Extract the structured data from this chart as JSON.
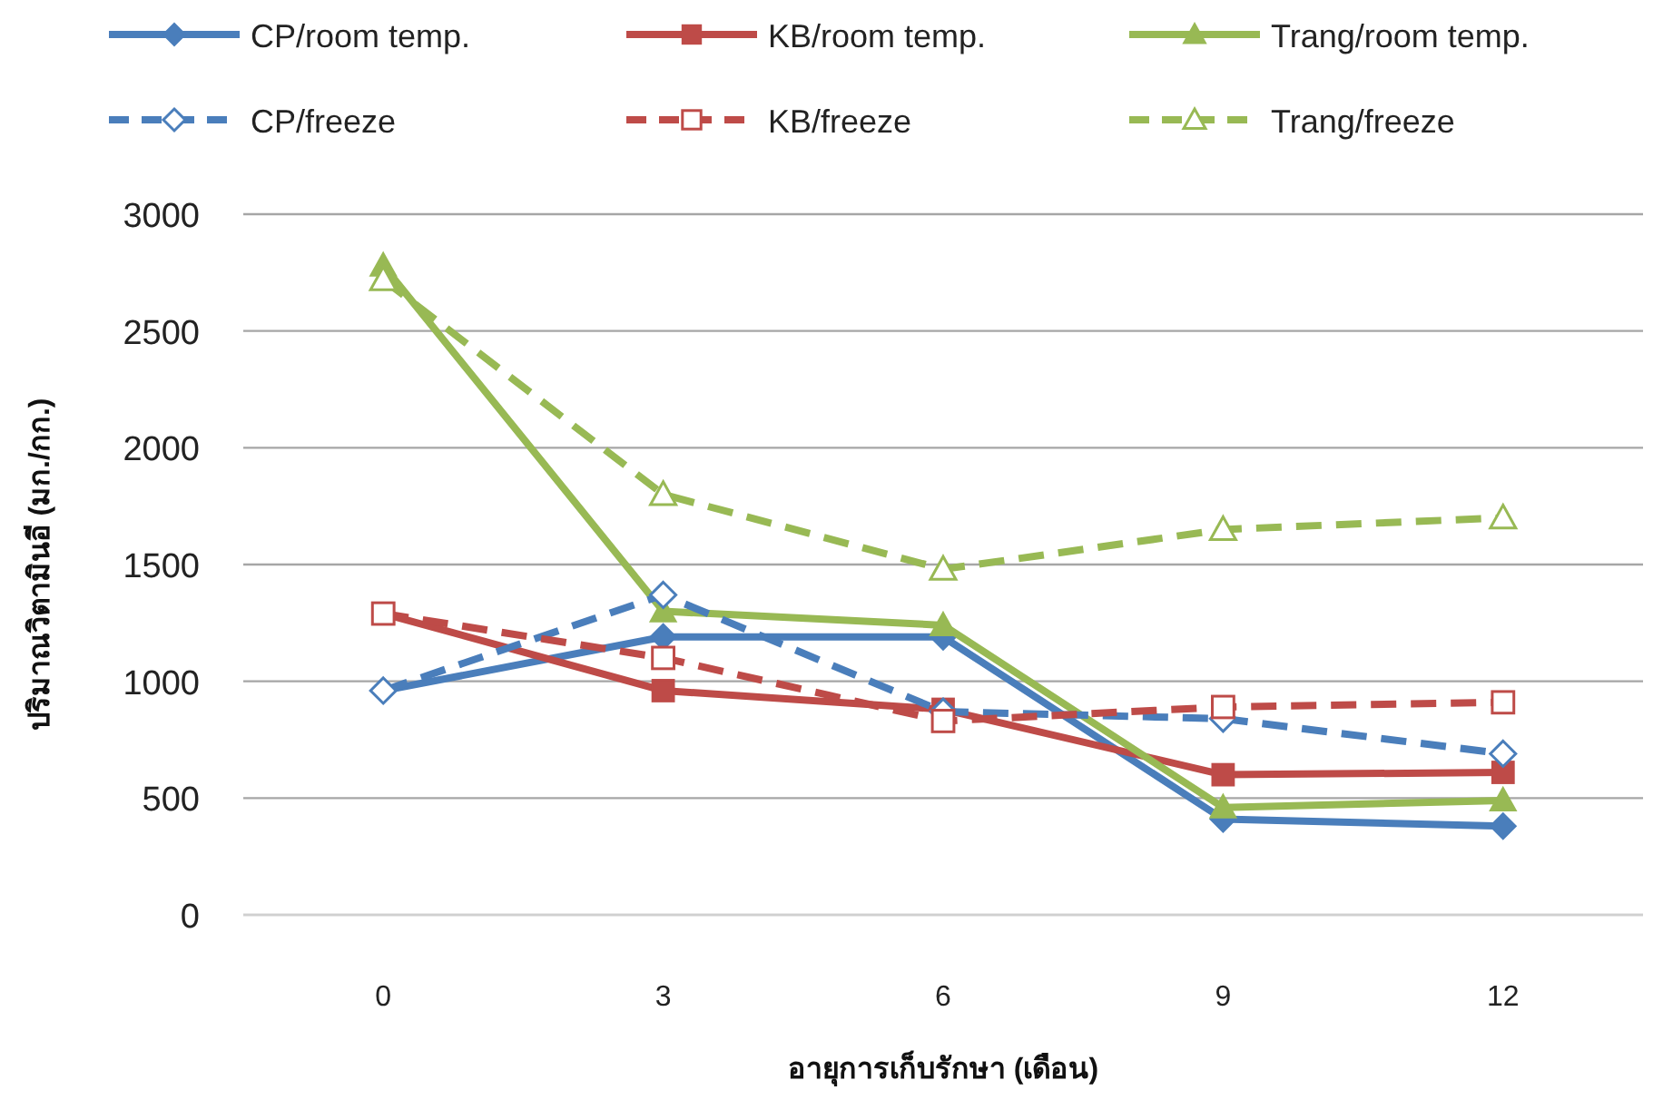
{
  "chart_data": {
    "type": "line",
    "xlabel": "อายุการเก็บรักษา (เดือน)",
    "ylabel": "ปริมาณวิตามินอี (มก./กก.)",
    "categories": [
      "0",
      "3",
      "6",
      "9",
      "12"
    ],
    "ylim": [
      0,
      3000
    ],
    "yticks": [
      0,
      500,
      1000,
      1500,
      2000,
      2500,
      3000
    ],
    "grid": "y",
    "legend": "top",
    "series": [
      {
        "name": "CP/room temp.",
        "color": "#4a7ebb",
        "marker": "diamond",
        "line_style": "solid",
        "values": [
          960,
          1190,
          1190,
          410,
          380
        ]
      },
      {
        "name": "KB/room temp.",
        "color": "#be4b48",
        "marker": "square",
        "line_style": "solid",
        "values": [
          1290,
          960,
          880,
          600,
          610
        ]
      },
      {
        "name": "Trang/room temp.",
        "color": "#98b954",
        "marker": "triangle",
        "line_style": "solid",
        "values": [
          2780,
          1300,
          1240,
          460,
          490
        ]
      },
      {
        "name": "CP/freeze",
        "color": "#4a7ebb",
        "marker": "diamond",
        "line_style": "dashed",
        "values": [
          960,
          1370,
          870,
          840,
          690
        ]
      },
      {
        "name": "KB/freeze",
        "color": "#be4b48",
        "marker": "square",
        "line_style": "dashed",
        "values": [
          1290,
          1100,
          830,
          890,
          910
        ]
      },
      {
        "name": "Trang/freeze",
        "color": "#98b954",
        "marker": "triangle",
        "line_style": "dashed",
        "values": [
          2720,
          1800,
          1480,
          1650,
          1700
        ]
      }
    ]
  }
}
